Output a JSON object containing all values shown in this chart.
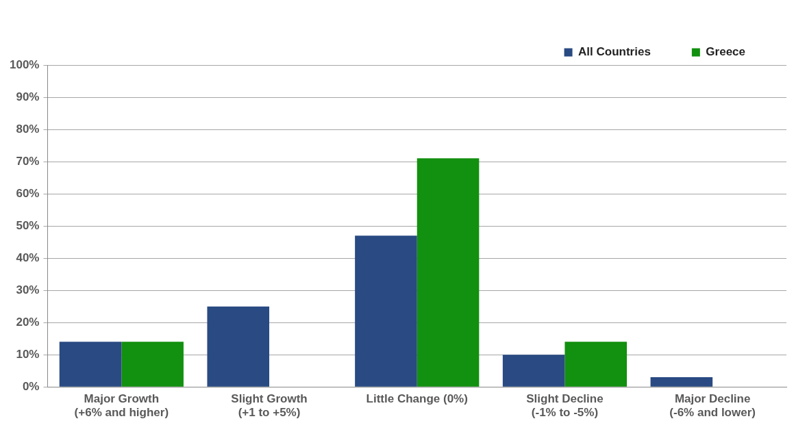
{
  "chart_data": {
    "type": "bar",
    "categories": [
      "Major Growth\n(+6% and higher)",
      "Slight Growth\n(+1 to +5%)",
      "Little Change (0%)",
      "Slight Decline\n(-1% to -5%)",
      "Major Decline\n(-6% and lower)"
    ],
    "series": [
      {
        "name": "All Countries",
        "color": "#294a82",
        "values": [
          14,
          25,
          47,
          10,
          3
        ]
      },
      {
        "name": "Greece",
        "color": "#12900f",
        "values": [
          14,
          0,
          71,
          14,
          0
        ]
      }
    ],
    "ylim": [
      0,
      100
    ],
    "yticks": [
      {
        "value": 0,
        "label": "0%"
      },
      {
        "value": 10,
        "label": "10%"
      },
      {
        "value": 20,
        "label": "20%"
      },
      {
        "value": 30,
        "label": "30%"
      },
      {
        "value": 40,
        "label": "40%"
      },
      {
        "value": 50,
        "label": "50%"
      },
      {
        "value": 60,
        "label": "60%"
      },
      {
        "value": 70,
        "label": "70%"
      },
      {
        "value": 80,
        "label": "80%"
      },
      {
        "value": 90,
        "label": "90%"
      },
      {
        "value": 100,
        "label": "100%"
      }
    ],
    "grid": "y",
    "legend": "top right"
  }
}
